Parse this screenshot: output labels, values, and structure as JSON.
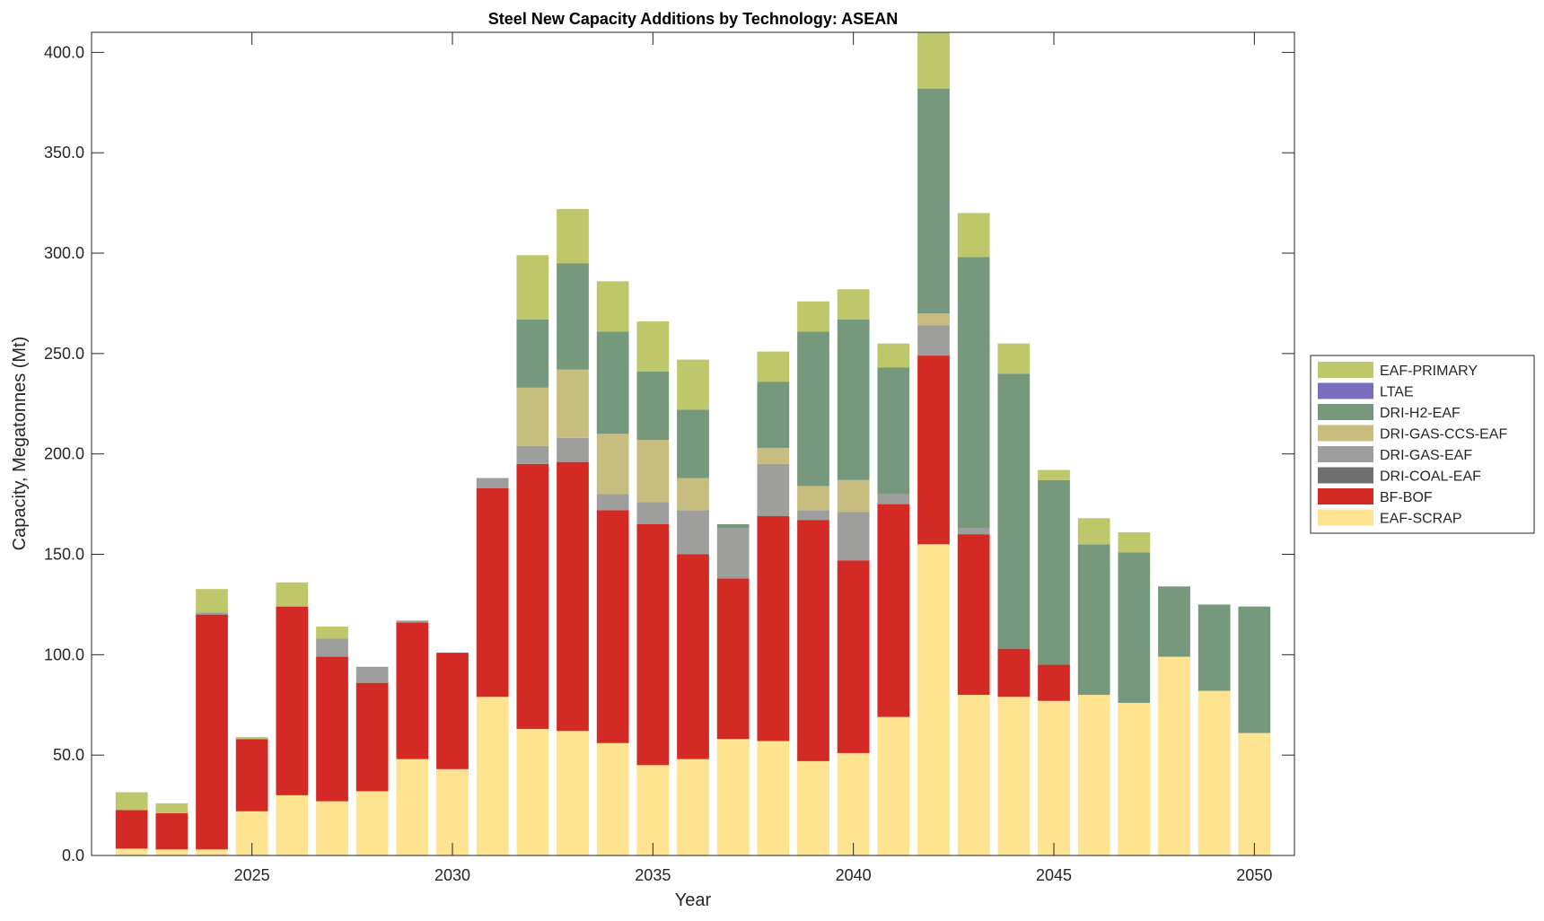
{
  "chart_data": {
    "type": "bar",
    "stacked": true,
    "title": "Steel New Capacity Additions by Technology: ASEAN",
    "xlabel": "Year",
    "ylabel": "Capacity, Megatonnes (Mt)",
    "xlim": [
      2021,
      2051
    ],
    "ylim": [
      0,
      410
    ],
    "xticks": [
      2025,
      2030,
      2035,
      2040,
      2045,
      2050
    ],
    "yticks": [
      0,
      50,
      100,
      150,
      200,
      250,
      300,
      350,
      400
    ],
    "ytick_labels": [
      "0.0",
      "50.0",
      "100.0",
      "150.0",
      "200.0",
      "250.0",
      "300.0",
      "350.0",
      "400.0"
    ],
    "legend_placement": "right",
    "x": [
      2022,
      2023,
      2024,
      2025,
      2026,
      2027,
      2028,
      2029,
      2030,
      2031,
      2032,
      2033,
      2034,
      2035,
      2036,
      2037,
      2038,
      2039,
      2040,
      2041,
      2042,
      2043,
      2044,
      2045,
      2046,
      2047,
      2048,
      2049,
      2050
    ],
    "series": [
      {
        "name": "EAF-SCRAP",
        "color": "#fee391",
        "values": [
          3.4,
          3,
          3,
          22,
          30,
          27,
          32,
          48,
          43,
          79,
          63,
          62,
          56,
          45,
          48,
          58,
          57,
          47,
          51,
          69,
          155,
          80,
          79,
          77,
          80,
          76,
          99,
          82,
          61
        ]
      },
      {
        "name": "BF-BOF",
        "color": "#d42a25",
        "values": [
          19.2,
          18,
          117,
          36,
          94,
          72,
          54,
          68,
          58,
          104,
          132,
          134,
          116,
          120,
          102,
          80,
          112,
          120,
          96,
          106,
          94,
          80,
          24,
          18,
          0,
          0,
          0,
          0,
          0
        ]
      },
      {
        "name": "DRI-COAL-EAF",
        "color": "#707070",
        "values": [
          0,
          0,
          0,
          0,
          0,
          0,
          0,
          0,
          0,
          0,
          0,
          0,
          0,
          0,
          0,
          0,
          0,
          0,
          0,
          0,
          0,
          0,
          0,
          0,
          0,
          0,
          0,
          0,
          0
        ]
      },
      {
        "name": "DRI-GAS-EAF",
        "color": "#9e9e9c",
        "values": [
          0,
          0,
          1,
          0,
          0,
          9,
          8,
          1,
          0,
          5,
          9,
          12,
          8,
          11,
          22,
          25,
          26,
          5,
          24,
          5,
          15,
          3,
          0,
          0,
          0,
          0,
          0,
          0,
          0
        ]
      },
      {
        "name": "DRI-GAS-CCS-EAF",
        "color": "#c6bd7f",
        "values": [
          0,
          0,
          0,
          0,
          0,
          0,
          0,
          0,
          0,
          0,
          29,
          34,
          30,
          31,
          16,
          0,
          8,
          12,
          16,
          0,
          6,
          0,
          0,
          0,
          0,
          0,
          0,
          0,
          0
        ]
      },
      {
        "name": "DRI-H2-EAF",
        "color": "#76997e",
        "values": [
          0,
          0,
          0,
          0,
          0,
          0,
          0,
          0,
          0,
          0,
          34,
          53,
          51,
          34,
          34,
          2,
          33,
          77,
          80,
          63,
          112,
          135,
          137,
          92,
          75,
          75,
          35,
          43,
          63
        ]
      },
      {
        "name": "LTAE",
        "color": "#7a6fbe",
        "values": [
          0,
          0,
          0,
          0,
          0,
          0,
          0,
          0,
          0,
          0,
          0,
          0,
          0,
          0,
          0,
          0,
          0,
          0,
          0,
          0,
          0,
          0,
          0,
          0,
          0,
          0,
          0,
          0,
          0
        ]
      },
      {
        "name": "EAF-PRIMARY",
        "color": "#bec76a",
        "values": [
          8.9,
          5,
          11.7,
          1,
          12,
          6,
          0,
          0,
          0,
          0,
          32,
          27,
          25,
          25,
          25,
          0,
          15,
          15,
          15,
          12,
          40,
          22,
          15,
          5,
          13,
          10,
          0,
          0,
          0
        ]
      }
    ]
  }
}
